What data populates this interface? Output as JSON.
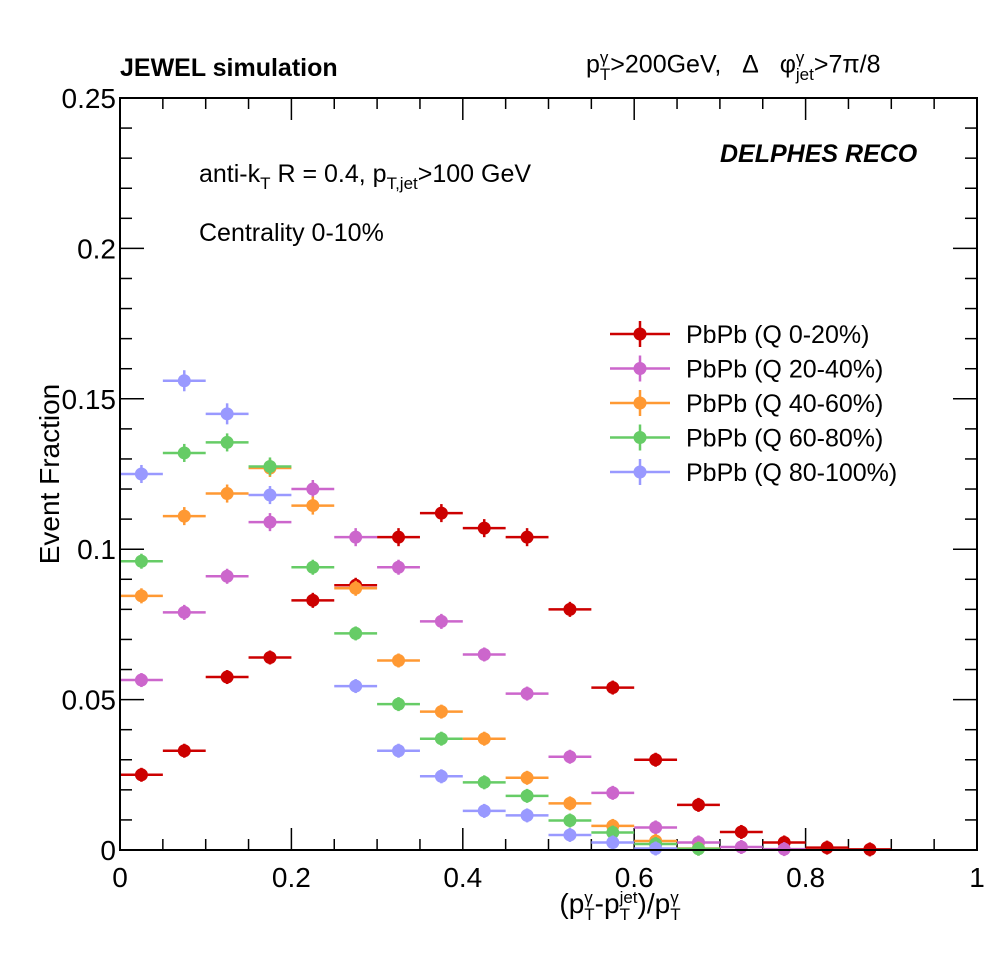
{
  "header": {
    "left_title": "JEWEL simulation",
    "right_pt": "p",
    "right_pt_sup": "γ",
    "right_pt_sub": "T",
    "right_cut": ">200GeV,",
    "right_delta": "Δ",
    "right_phi": "φ",
    "right_phi_sup": "γ",
    "right_phi_sub": "jet",
    "right_phi_cut": ">7π/8"
  },
  "annotations": {
    "delphes": "DELPHES RECO",
    "jet_a": "anti-k",
    "jet_a_sub": "T",
    "jet_b": " R = 0.4, p",
    "jet_b_sub": "T,jet",
    "jet_c": ">100 GeV",
    "centrality": "Centrality 0-10%"
  },
  "axes": {
    "ylabel": "Event Fraction",
    "xlabel_open": "(p",
    "xlabel_sup1": "γ",
    "xlabel_sub1": "T",
    "xlabel_dash": "-p",
    "xlabel_sup2": "jet",
    "xlabel_sub2": "T",
    "xlabel_div": ")/p",
    "xlabel_sup3": "γ",
    "xlabel_sub3": "T"
  },
  "chart_data": {
    "type": "scatter",
    "title": "JEWEL simulation",
    "xlim": [
      0,
      1
    ],
    "ylim": [
      0,
      0.25
    ],
    "x_ticks": [
      0,
      0.2,
      0.4,
      0.6,
      0.8,
      1
    ],
    "x_tick_labels": [
      "0",
      "0.2",
      "0.4",
      "0.6",
      "0.8",
      "1"
    ],
    "y_ticks": [
      0,
      0.05,
      0.1,
      0.15,
      0.2,
      0.25
    ],
    "y_tick_labels": [
      "0",
      "0.05",
      "0.1",
      "0.15",
      "0.2",
      "0.25"
    ],
    "bin_half_width": 0.025,
    "legend_position": "right",
    "series": [
      {
        "name": "PbPb (Q 0-20%)",
        "color": "#cc0000",
        "x": [
          0.025,
          0.075,
          0.125,
          0.175,
          0.225,
          0.275,
          0.325,
          0.375,
          0.425,
          0.475,
          0.525,
          0.575,
          0.625,
          0.675,
          0.725,
          0.775,
          0.825,
          0.875
        ],
        "y": [
          0.025,
          0.033,
          0.0575,
          0.064,
          0.083,
          0.088,
          0.104,
          0.112,
          0.107,
          0.104,
          0.08,
          0.054,
          0.03,
          0.015,
          0.006,
          0.0025,
          0.0008,
          0.0002
        ],
        "err": [
          0.0015,
          0.0015,
          0.002,
          0.002,
          0.0025,
          0.0025,
          0.003,
          0.003,
          0.003,
          0.003,
          0.0025,
          0.002,
          0.0015,
          0.001,
          0.001,
          0.0005,
          0.0003,
          0.0001
        ]
      },
      {
        "name": "PbPb (Q 20-40%)",
        "color": "#cc66cc",
        "x": [
          0.025,
          0.075,
          0.125,
          0.175,
          0.225,
          0.275,
          0.325,
          0.375,
          0.425,
          0.475,
          0.525,
          0.575,
          0.625,
          0.675,
          0.725,
          0.775
        ],
        "y": [
          0.0565,
          0.079,
          0.091,
          0.109,
          0.12,
          0.104,
          0.094,
          0.076,
          0.065,
          0.052,
          0.031,
          0.019,
          0.0075,
          0.0025,
          0.001,
          0.0003
        ],
        "err": [
          0.002,
          0.0025,
          0.0025,
          0.003,
          0.003,
          0.003,
          0.0025,
          0.0025,
          0.002,
          0.002,
          0.0015,
          0.0012,
          0.0008,
          0.0005,
          0.0003,
          0.0002
        ]
      },
      {
        "name": "PbPb (Q 40-60%)",
        "color": "#ff9933",
        "x": [
          0.025,
          0.075,
          0.125,
          0.175,
          0.225,
          0.275,
          0.325,
          0.375,
          0.425,
          0.475,
          0.525,
          0.575,
          0.625,
          0.675
        ],
        "y": [
          0.0845,
          0.111,
          0.1185,
          0.127,
          0.1145,
          0.087,
          0.063,
          0.046,
          0.037,
          0.024,
          0.0155,
          0.008,
          0.003,
          0.0005
        ],
        "err": [
          0.0025,
          0.003,
          0.003,
          0.003,
          0.003,
          0.0025,
          0.002,
          0.002,
          0.0015,
          0.0015,
          0.0012,
          0.0008,
          0.0005,
          0.0003
        ]
      },
      {
        "name": "PbPb (Q 60-80%)",
        "color": "#66cc66",
        "x": [
          0.025,
          0.075,
          0.125,
          0.175,
          0.225,
          0.275,
          0.325,
          0.375,
          0.425,
          0.475,
          0.525,
          0.575,
          0.625,
          0.675
        ],
        "y": [
          0.096,
          0.132,
          0.1355,
          0.1275,
          0.094,
          0.072,
          0.0485,
          0.037,
          0.0225,
          0.018,
          0.0098,
          0.0058,
          0.002,
          0.0004
        ],
        "err": [
          0.0025,
          0.003,
          0.003,
          0.003,
          0.0025,
          0.002,
          0.002,
          0.0015,
          0.0012,
          0.0012,
          0.0008,
          0.0006,
          0.0004,
          0.0002
        ]
      },
      {
        "name": "PbPb (Q 80-100%)",
        "color": "#9999ff",
        "x": [
          0.025,
          0.075,
          0.125,
          0.175,
          0.275,
          0.325,
          0.375,
          0.425,
          0.475,
          0.525,
          0.575,
          0.625
        ],
        "y": [
          0.125,
          0.156,
          0.145,
          0.118,
          0.0545,
          0.033,
          0.0245,
          0.013,
          0.0115,
          0.005,
          0.0025,
          0.0005
        ],
        "err": [
          0.003,
          0.0035,
          0.0035,
          0.003,
          0.002,
          0.0015,
          0.0012,
          0.001,
          0.001,
          0.0006,
          0.0004,
          0.0002
        ]
      }
    ]
  }
}
